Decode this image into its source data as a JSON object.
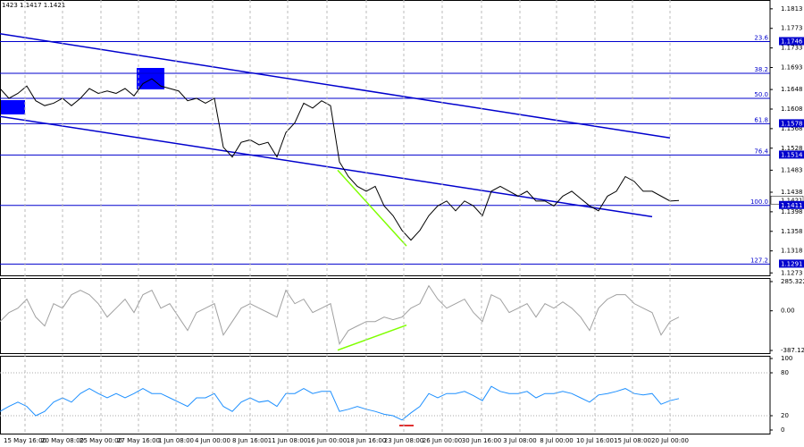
{
  "chart_data": [
    {
      "type": "line",
      "header": "1423 1.1417 1.1421",
      "color": "#000000",
      "xlim": [
        0,
        86.2
      ],
      "ylim": [
        1.1268,
        1.1831
      ],
      "yticks": [
        1.1813,
        1.1773,
        1.1733,
        1.1693,
        1.1648,
        1.1608,
        1.1568,
        1.1528,
        1.1483,
        1.1438,
        1.1398,
        1.1358,
        1.1318,
        1.1273
      ],
      "values": [
        1.165,
        1.163,
        1.164,
        1.1655,
        1.1625,
        1.1615,
        1.162,
        1.163,
        1.1615,
        1.163,
        1.165,
        1.164,
        1.1645,
        1.164,
        1.165,
        1.1635,
        1.166,
        1.167,
        1.1655,
        1.165,
        1.1645,
        1.1625,
        1.163,
        1.162,
        1.163,
        1.153,
        1.151,
        1.154,
        1.1545,
        1.1535,
        1.154,
        1.151,
        1.156,
        1.158,
        1.162,
        1.161,
        1.1625,
        1.1615,
        1.15,
        1.147,
        1.145,
        1.144,
        1.145,
        1.141,
        1.139,
        1.136,
        1.134,
        1.136,
        1.139,
        1.141,
        1.142,
        1.14,
        1.142,
        1.141,
        1.139,
        1.144,
        1.145,
        1.144,
        1.143,
        1.144,
        1.142,
        1.142,
        1.141,
        1.143,
        1.144,
        1.1425,
        1.141,
        1.14,
        1.143,
        1.144,
        1.147,
        1.146,
        1.144,
        1.144,
        1.143,
        1.142,
        1.1421
      ],
      "level_color": "#0000cd",
      "levels": [
        {
          "label": "23.6",
          "value": 1.1746
        },
        {
          "label": "38.2",
          "value": 1.1681
        },
        {
          "label": "50.0",
          "value": 1.163
        },
        {
          "label": "61.8",
          "value": 1.1578
        },
        {
          "label": "76.4",
          "value": 1.1514
        },
        {
          "label": "100.0",
          "value": 1.1411
        },
        {
          "label": "127.2",
          "value": 1.1291
        }
      ],
      "price_tags": [
        1.1746,
        1.1578,
        1.1514,
        1.1411,
        1.1291
      ],
      "current_price": 1.1421,
      "lines": [
        {
          "color": "#0000cd",
          "x": [
            0,
            75
          ],
          "y": [
            1.1762,
            1.1549
          ]
        },
        {
          "color": "#0000cd",
          "x": [
            0,
            73
          ],
          "y": [
            1.1593,
            1.1388
          ]
        },
        {
          "color": "#7fff00",
          "x": [
            37.8,
            45.5
          ],
          "y": [
            1.1483,
            1.1328
          ]
        }
      ]
    },
    {
      "type": "line",
      "color": "#a0a0a0",
      "xlim": [
        0,
        86.2
      ],
      "ylim": [
        -413,
        320
      ],
      "yticks": [
        285.322,
        {
          "value": 0,
          "label": "0.00"
        },
        -387.129
      ],
      "values": [
        -105,
        -17,
        26,
        114,
        -61,
        -148,
        70,
        26,
        157,
        201,
        157,
        70,
        -61,
        26,
        114,
        -17,
        157,
        201,
        26,
        70,
        -61,
        -192,
        -17,
        26,
        70,
        -236,
        -105,
        26,
        70,
        26,
        -17,
        -61,
        201,
        70,
        114,
        -17,
        26,
        70,
        -323,
        -192,
        -148,
        -105,
        -105,
        -61,
        -87,
        -61,
        26,
        70,
        245,
        114,
        26,
        70,
        114,
        -17,
        -105,
        157,
        114,
        -17,
        26,
        70,
        -61,
        70,
        26,
        87,
        26,
        -61,
        -192,
        26,
        114,
        157,
        157,
        70,
        26,
        -17,
        -236,
        -105,
        -61
      ],
      "lines": [
        {
          "color": "#7fff00",
          "x": [
            37.8,
            45.5
          ],
          "y": [
            -384,
            -140
          ]
        }
      ]
    },
    {
      "type": "line",
      "color": "#1e90ff",
      "xlim": [
        0,
        86.2
      ],
      "ylim": [
        -5,
        103.75
      ],
      "yticks": [
        100,
        80,
        20,
        0
      ],
      "dotted_levels": [
        80,
        20
      ],
      "values": [
        26,
        33,
        39,
        33,
        20,
        26,
        39,
        45,
        39,
        51,
        58,
        51,
        45,
        51,
        45,
        51,
        58,
        51,
        51,
        45,
        39,
        33,
        45,
        45,
        51,
        33,
        26,
        39,
        45,
        39,
        41,
        33,
        51,
        51,
        58,
        51,
        54,
        54,
        26,
        29,
        33,
        29,
        26,
        22,
        20,
        14,
        24,
        33,
        51,
        45,
        51,
        51,
        54,
        48,
        41,
        61,
        54,
        51,
        51,
        54,
        45,
        51,
        51,
        54,
        51,
        45,
        39,
        49,
        51,
        54,
        58,
        51,
        49,
        51,
        36,
        41,
        44
      ],
      "xticks": [
        {
          "value": 2.8,
          "label": "15 May 16:00"
        },
        {
          "value": 7.0,
          "label": "20 May 08:00"
        },
        {
          "value": 11.3,
          "label": "25 May 00:00"
        },
        {
          "value": 15.5,
          "label": "27 May 16:00"
        },
        {
          "value": 19.7,
          "label": "1 Jun 08:00"
        },
        {
          "value": 23.8,
          "label": "4 Jun 00:00"
        },
        {
          "value": 28.0,
          "label": "8 Jun 16:00"
        },
        {
          "value": 32.2,
          "label": "11 Jun 08:00"
        },
        {
          "value": 36.6,
          "label": "16 Jun 00:00"
        },
        {
          "value": 41.0,
          "label": "18 Jun 16:00"
        },
        {
          "value": 45.2,
          "label": "23 Jun 08:00"
        },
        {
          "value": 49.5,
          "label": "26 Jun 00:00"
        },
        {
          "value": 53.9,
          "label": "30 Jun 16:00"
        },
        {
          "value": 58.2,
          "label": "3 Jul 08:00"
        },
        {
          "value": 62.3,
          "label": "8 Jul 00:00"
        },
        {
          "value": 66.6,
          "label": "10 Jul 16:00"
        },
        {
          "value": 70.8,
          "label": "15 Jul 08:00"
        },
        {
          "value": 75.0,
          "label": "20 Jul 00:00"
        }
      ]
    }
  ]
}
